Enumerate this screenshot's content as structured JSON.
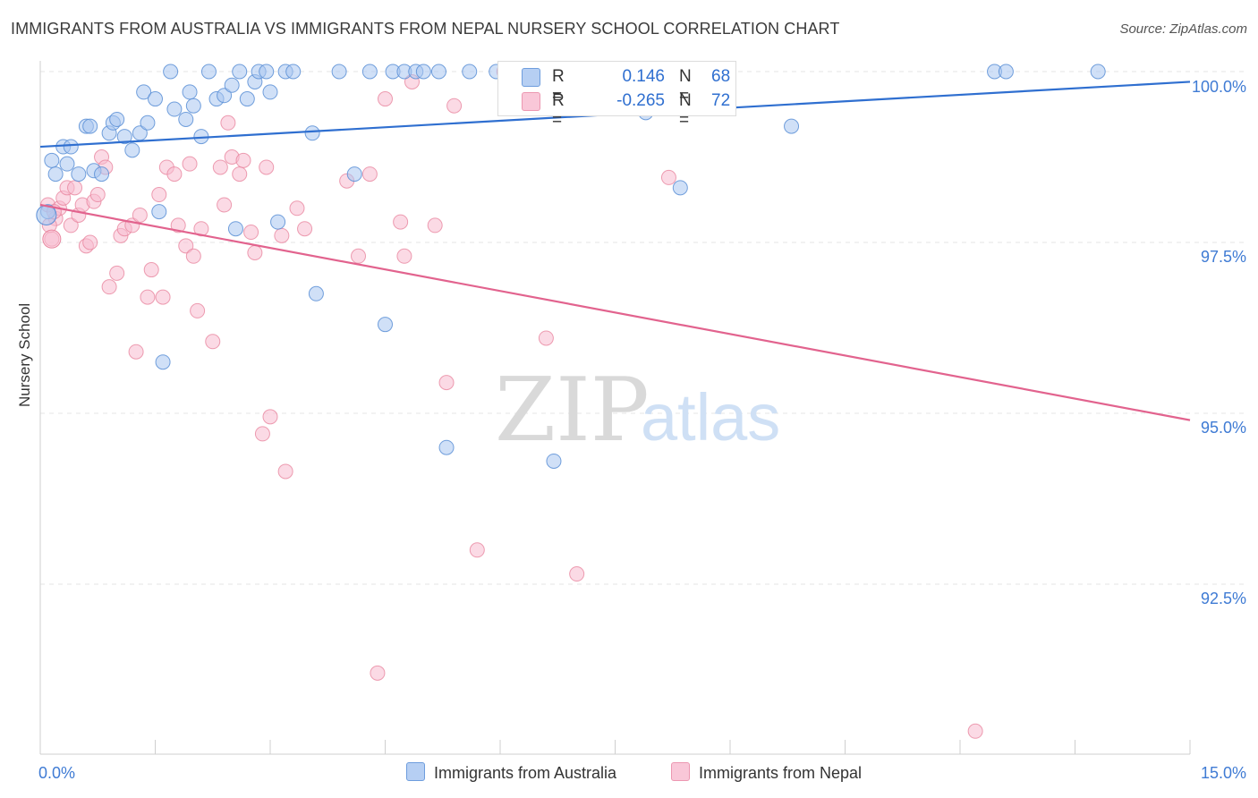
{
  "header": {
    "title": "IMMIGRANTS FROM AUSTRALIA VS IMMIGRANTS FROM NEPAL NURSERY SCHOOL CORRELATION CHART",
    "source": "Source: ZipAtlas.com"
  },
  "watermark": {
    "zip": "ZIP",
    "atlas": "atlas"
  },
  "colors": {
    "australia_fill": "#a9c7f0",
    "australia_stroke": "#5b8fd6",
    "australia_line": "#2f6fd0",
    "nepal_fill": "#f7bcd0",
    "nepal_stroke": "#e8869f",
    "nepal_line": "#e2638e",
    "axis_label": "#3f7bd4",
    "grid": "#e6e6e6"
  },
  "legend": {
    "rows": [
      {
        "r_label": "R =",
        "r_value": "0.146",
        "n_label": "N =",
        "n_value": "68"
      },
      {
        "r_label": "R =",
        "r_value": "-0.265",
        "n_label": "N =",
        "n_value": "72"
      }
    ]
  },
  "bottom_legend": {
    "australia": "Immigrants from Australia",
    "nepal": "Immigrants from Nepal"
  },
  "chart_data": {
    "type": "scatter",
    "title": "IMMIGRANTS FROM AUSTRALIA VS IMMIGRANTS FROM NEPAL NURSERY SCHOOL CORRELATION CHART",
    "ylabel": "Nursery School",
    "xlabel": "",
    "xlim": [
      0,
      15
    ],
    "ylim": [
      90.6,
      100.4
    ],
    "x_tick_labels": [
      "0.0%",
      "15.0%"
    ],
    "y_ticks": [
      100.0,
      97.5,
      95.0,
      92.5
    ],
    "y_tick_labels": [
      "100.0%",
      "97.5%",
      "95.0%",
      "92.5%"
    ],
    "grid": "horizontal dashed",
    "legend_placement": "top-center and bottom",
    "series": [
      {
        "name": "Immigrants from Australia",
        "trend": {
          "x": [
            0,
            15
          ],
          "y": [
            98.9,
            99.85
          ]
        },
        "points": [
          [
            0.1,
            97.95
          ],
          [
            0.15,
            98.7
          ],
          [
            0.2,
            98.5
          ],
          [
            0.3,
            98.9
          ],
          [
            0.35,
            98.65
          ],
          [
            0.4,
            98.9
          ],
          [
            0.5,
            98.5
          ],
          [
            0.6,
            99.2
          ],
          [
            0.65,
            99.2
          ],
          [
            0.7,
            98.55
          ],
          [
            0.8,
            98.5
          ],
          [
            0.9,
            99.1
          ],
          [
            0.95,
            99.25
          ],
          [
            1.0,
            99.3
          ],
          [
            1.1,
            99.05
          ],
          [
            1.2,
            98.85
          ],
          [
            1.3,
            99.1
          ],
          [
            1.35,
            99.7
          ],
          [
            1.4,
            99.25
          ],
          [
            1.5,
            99.6
          ],
          [
            1.55,
            97.95
          ],
          [
            1.6,
            95.75
          ],
          [
            1.7,
            100.0
          ],
          [
            1.75,
            99.45
          ],
          [
            1.9,
            99.3
          ],
          [
            1.95,
            99.7
          ],
          [
            2.0,
            99.5
          ],
          [
            2.1,
            99.05
          ],
          [
            2.2,
            100.0
          ],
          [
            2.3,
            99.6
          ],
          [
            2.4,
            99.65
          ],
          [
            2.5,
            99.8
          ],
          [
            2.55,
            97.7
          ],
          [
            2.6,
            100.0
          ],
          [
            2.7,
            99.6
          ],
          [
            2.8,
            99.85
          ],
          [
            2.85,
            100.0
          ],
          [
            2.95,
            100.0
          ],
          [
            3.0,
            99.7
          ],
          [
            3.1,
            97.8
          ],
          [
            3.2,
            100.0
          ],
          [
            3.3,
            100.0
          ],
          [
            3.6,
            96.75
          ],
          [
            3.55,
            99.1
          ],
          [
            3.9,
            100.0
          ],
          [
            4.1,
            98.5
          ],
          [
            4.3,
            100.0
          ],
          [
            4.5,
            96.3
          ],
          [
            4.6,
            100.0
          ],
          [
            4.75,
            100.0
          ],
          [
            4.9,
            100.0
          ],
          [
            5.0,
            100.0
          ],
          [
            5.2,
            100.0
          ],
          [
            5.3,
            94.5
          ],
          [
            5.6,
            100.0
          ],
          [
            5.95,
            100.0
          ],
          [
            6.3,
            100.0
          ],
          [
            6.7,
            94.3
          ],
          [
            6.8,
            100.0
          ],
          [
            7.0,
            99.5
          ],
          [
            7.3,
            100.0
          ],
          [
            7.65,
            100.0
          ],
          [
            7.9,
            99.4
          ],
          [
            8.35,
            98.3
          ],
          [
            9.8,
            99.2
          ],
          [
            12.45,
            100.0
          ],
          [
            12.6,
            100.0
          ],
          [
            13.8,
            100.0
          ]
        ]
      },
      {
        "name": "Immigrants from Nepal",
        "trend": {
          "x": [
            0,
            15
          ],
          "y": [
            98.05,
            94.9
          ]
        },
        "points": [
          [
            0.1,
            98.05
          ],
          [
            0.15,
            97.55
          ],
          [
            0.2,
            97.85
          ],
          [
            0.25,
            98.0
          ],
          [
            0.3,
            98.15
          ],
          [
            0.35,
            98.3
          ],
          [
            0.4,
            97.75
          ],
          [
            0.45,
            98.3
          ],
          [
            0.5,
            97.9
          ],
          [
            0.55,
            98.05
          ],
          [
            0.6,
            97.45
          ],
          [
            0.65,
            97.5
          ],
          [
            0.7,
            98.1
          ],
          [
            0.75,
            98.2
          ],
          [
            0.8,
            98.75
          ],
          [
            0.85,
            98.6
          ],
          [
            0.9,
            96.85
          ],
          [
            1.0,
            97.05
          ],
          [
            1.05,
            97.6
          ],
          [
            1.1,
            97.7
          ],
          [
            1.2,
            97.75
          ],
          [
            1.25,
            95.9
          ],
          [
            1.3,
            97.9
          ],
          [
            1.4,
            96.7
          ],
          [
            1.45,
            97.1
          ],
          [
            1.55,
            98.2
          ],
          [
            1.6,
            96.7
          ],
          [
            1.65,
            98.6
          ],
          [
            1.75,
            98.5
          ],
          [
            1.8,
            97.75
          ],
          [
            1.9,
            97.45
          ],
          [
            1.95,
            98.65
          ],
          [
            2.0,
            97.3
          ],
          [
            2.05,
            96.5
          ],
          [
            2.1,
            97.7
          ],
          [
            2.25,
            96.05
          ],
          [
            2.35,
            98.6
          ],
          [
            2.4,
            98.05
          ],
          [
            2.45,
            99.25
          ],
          [
            2.5,
            98.75
          ],
          [
            2.6,
            98.5
          ],
          [
            2.65,
            98.7
          ],
          [
            2.75,
            97.65
          ],
          [
            2.8,
            97.35
          ],
          [
            2.9,
            94.7
          ],
          [
            2.95,
            98.6
          ],
          [
            3.0,
            94.95
          ],
          [
            3.15,
            97.6
          ],
          [
            3.2,
            94.15
          ],
          [
            3.35,
            98.0
          ],
          [
            3.45,
            97.7
          ],
          [
            4.0,
            98.4
          ],
          [
            4.15,
            97.3
          ],
          [
            4.3,
            98.5
          ],
          [
            4.4,
            91.2
          ],
          [
            4.5,
            99.6
          ],
          [
            4.7,
            97.8
          ],
          [
            4.75,
            97.3
          ],
          [
            4.85,
            99.85
          ],
          [
            5.15,
            97.75
          ],
          [
            5.3,
            95.45
          ],
          [
            5.4,
            99.5
          ],
          [
            5.7,
            93.0
          ],
          [
            6.05,
            100.0
          ],
          [
            6.6,
            96.1
          ],
          [
            7.0,
            92.65
          ],
          [
            7.55,
            100.0
          ],
          [
            7.85,
            100.0
          ],
          [
            8.2,
            98.45
          ],
          [
            12.2,
            90.35
          ],
          [
            0.12,
            97.75
          ],
          [
            0.18,
            97.95
          ]
        ]
      }
    ]
  }
}
